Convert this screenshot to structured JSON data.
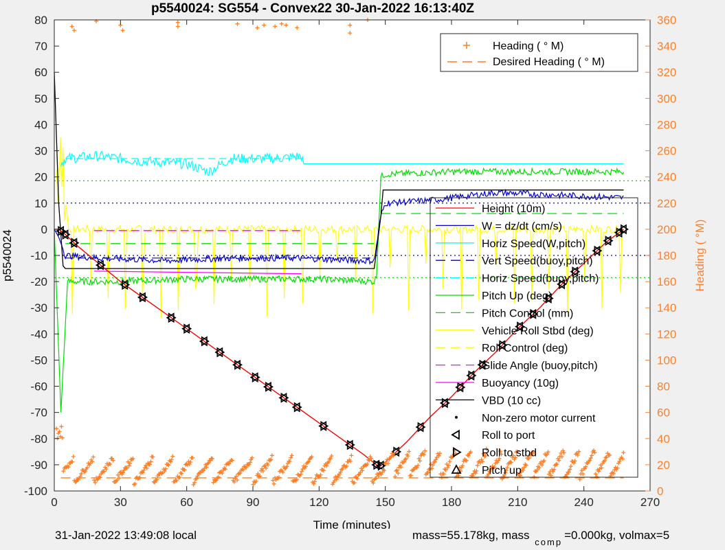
{
  "chart_data": {
    "type": "line",
    "title": "p5540024: SG554 - Convex22 30-Jan-2022 16:13:40Z",
    "xlabel": "Time (minutes)",
    "ylabel": "p5540024",
    "y2label": "Heading (  °M)",
    "xlim": [
      0,
      270
    ],
    "ylim": [
      -100,
      80
    ],
    "y2lim": [
      0,
      360
    ],
    "xticks": [
      0,
      30,
      60,
      90,
      120,
      150,
      180,
      210,
      240,
      270
    ],
    "yticks": [
      -100,
      -90,
      -80,
      -70,
      -60,
      -50,
      -40,
      -30,
      -20,
      -10,
      0,
      10,
      20,
      30,
      40,
      50,
      60,
      70,
      80
    ],
    "y2ticks": [
      0,
      20,
      40,
      60,
      80,
      100,
      120,
      140,
      160,
      180,
      200,
      220,
      240,
      260,
      280,
      300,
      320,
      340,
      360
    ],
    "grid": false,
    "colors": {
      "height": "#ff0000",
      "w": "#0000cc",
      "horiz": "#00ffff",
      "pitch": "#00dd00",
      "roll": "#ffff00",
      "glide": "#ff00ff",
      "vbd": "#000000",
      "heading": "#ff7f27"
    },
    "legend_top": {
      "position": "top-right",
      "entries": [
        "Heading (  ° M)",
        "Desired Heading (    ° M)"
      ]
    },
    "legend_main": {
      "position": "bottom-right",
      "entries": [
        "Height (10m)",
        "W = dz/dt (cm/s)",
        "Horiz Speed(W,pitch)",
        "Vert Speed(buoy,pitch)",
        "Horiz Speed(buoy,pitch)",
        "Pitch Up (deg)",
        "Pitch Control (mm)",
        "Vehicle Roll Stbd (deg)",
        "Roll Control (deg)",
        "Glide Angle (buoy,pitch)",
        "Buoyancy (10g)",
        "VBD (10 cc)",
        "Non-zero motor current",
        "Roll to port",
        "Roll to stbd",
        "Pitch up"
      ]
    },
    "series": [
      {
        "name": "Height (10m)",
        "x": [
          0,
          2,
          5,
          10,
          20,
          30,
          40,
          50,
          60,
          70,
          80,
          90,
          100,
          110,
          120,
          130,
          140,
          146,
          147,
          150,
          160,
          170,
          180,
          190,
          200,
          210,
          220,
          230,
          240,
          250,
          258
        ],
        "values": [
          0,
          0,
          -2,
          -6,
          -13,
          -20,
          -26,
          -32,
          -38,
          -44,
          -50,
          -56,
          -62,
          -68,
          -74,
          -80,
          -86,
          -90,
          -91,
          -89,
          -81,
          -72,
          -64,
          -55,
          -47,
          -38,
          -30,
          -21,
          -13,
          -5,
          0
        ]
      },
      {
        "name": "W = dz/dt (cm/s)",
        "x": [
          0,
          2,
          5,
          20,
          50,
          80,
          110,
          140,
          145,
          148,
          150,
          170,
          200,
          230,
          258
        ],
        "values": [
          0,
          -3,
          -10,
          -11,
          -12,
          -11,
          -11,
          -12,
          -12,
          5,
          10,
          11,
          14,
          13,
          12
        ]
      },
      {
        "name": "Horiz Speed(W,pitch)",
        "x": [
          0,
          3,
          5,
          20,
          40,
          60,
          70,
          80,
          100,
          112,
          113,
          258
        ],
        "values": [
          0,
          25,
          27,
          28,
          26,
          25,
          22,
          27,
          27,
          28,
          25,
          25
        ]
      },
      {
        "name": "Pitch Up (deg)",
        "x": [
          0,
          3,
          6,
          30,
          60,
          90,
          120,
          145,
          146,
          148,
          150,
          180,
          210,
          240,
          258
        ],
        "values": [
          0,
          -70,
          -20,
          -20,
          -19,
          -19,
          -19,
          -20,
          -18,
          20,
          21,
          22,
          22,
          22,
          22
        ]
      },
      {
        "name": "VBD (10 cc)",
        "x": [
          0,
          2,
          4,
          5,
          20,
          50,
          100,
          145,
          148,
          149,
          258
        ],
        "values": [
          60,
          10,
          -14,
          -15,
          -15,
          -15,
          -15,
          -15,
          5,
          15,
          15
        ]
      },
      {
        "name": "Buoyancy (10g)",
        "x": [
          18,
          112
        ],
        "values": [
          -16,
          -17
        ]
      },
      {
        "name": "Glide Angle (buoy,pitch)",
        "x": [
          18,
          112
        ],
        "values": [
          -0.5,
          -0.5
        ]
      },
      {
        "name": "Pitch Control (mm)",
        "x": [
          5,
          145,
          148,
          258
        ],
        "values": [
          -5.5,
          -5.5,
          6,
          6
        ]
      },
      {
        "name": "Vehicle Roll Stbd (deg)",
        "x": [
          0,
          258
        ],
        "values": [
          0,
          0
        ]
      }
    ],
    "reference_lines": [
      {
        "y": 10,
        "color": "#0000cc"
      },
      {
        "y": -10,
        "color": "#0000cc"
      },
      {
        "y": 18.5,
        "color": "#00dd00"
      },
      {
        "y": -18.5,
        "color": "#00dd00"
      }
    ],
    "roll_markers_x": [
      3,
      5,
      9,
      21,
      32,
      40,
      53,
      60,
      68,
      75,
      83,
      91,
      97,
      104,
      110,
      122,
      134,
      146,
      148,
      155,
      166,
      177,
      184,
      189,
      194,
      203,
      211,
      217,
      224,
      230,
      236,
      246,
      251,
      256,
      258
    ]
  },
  "footer": {
    "left": "31-Jan-2022 13:49:08 local",
    "right_main": "mass=55.178kg, mass",
    "right_sub": "comp",
    "right_tail": "=0.000kg, volmax=5"
  }
}
